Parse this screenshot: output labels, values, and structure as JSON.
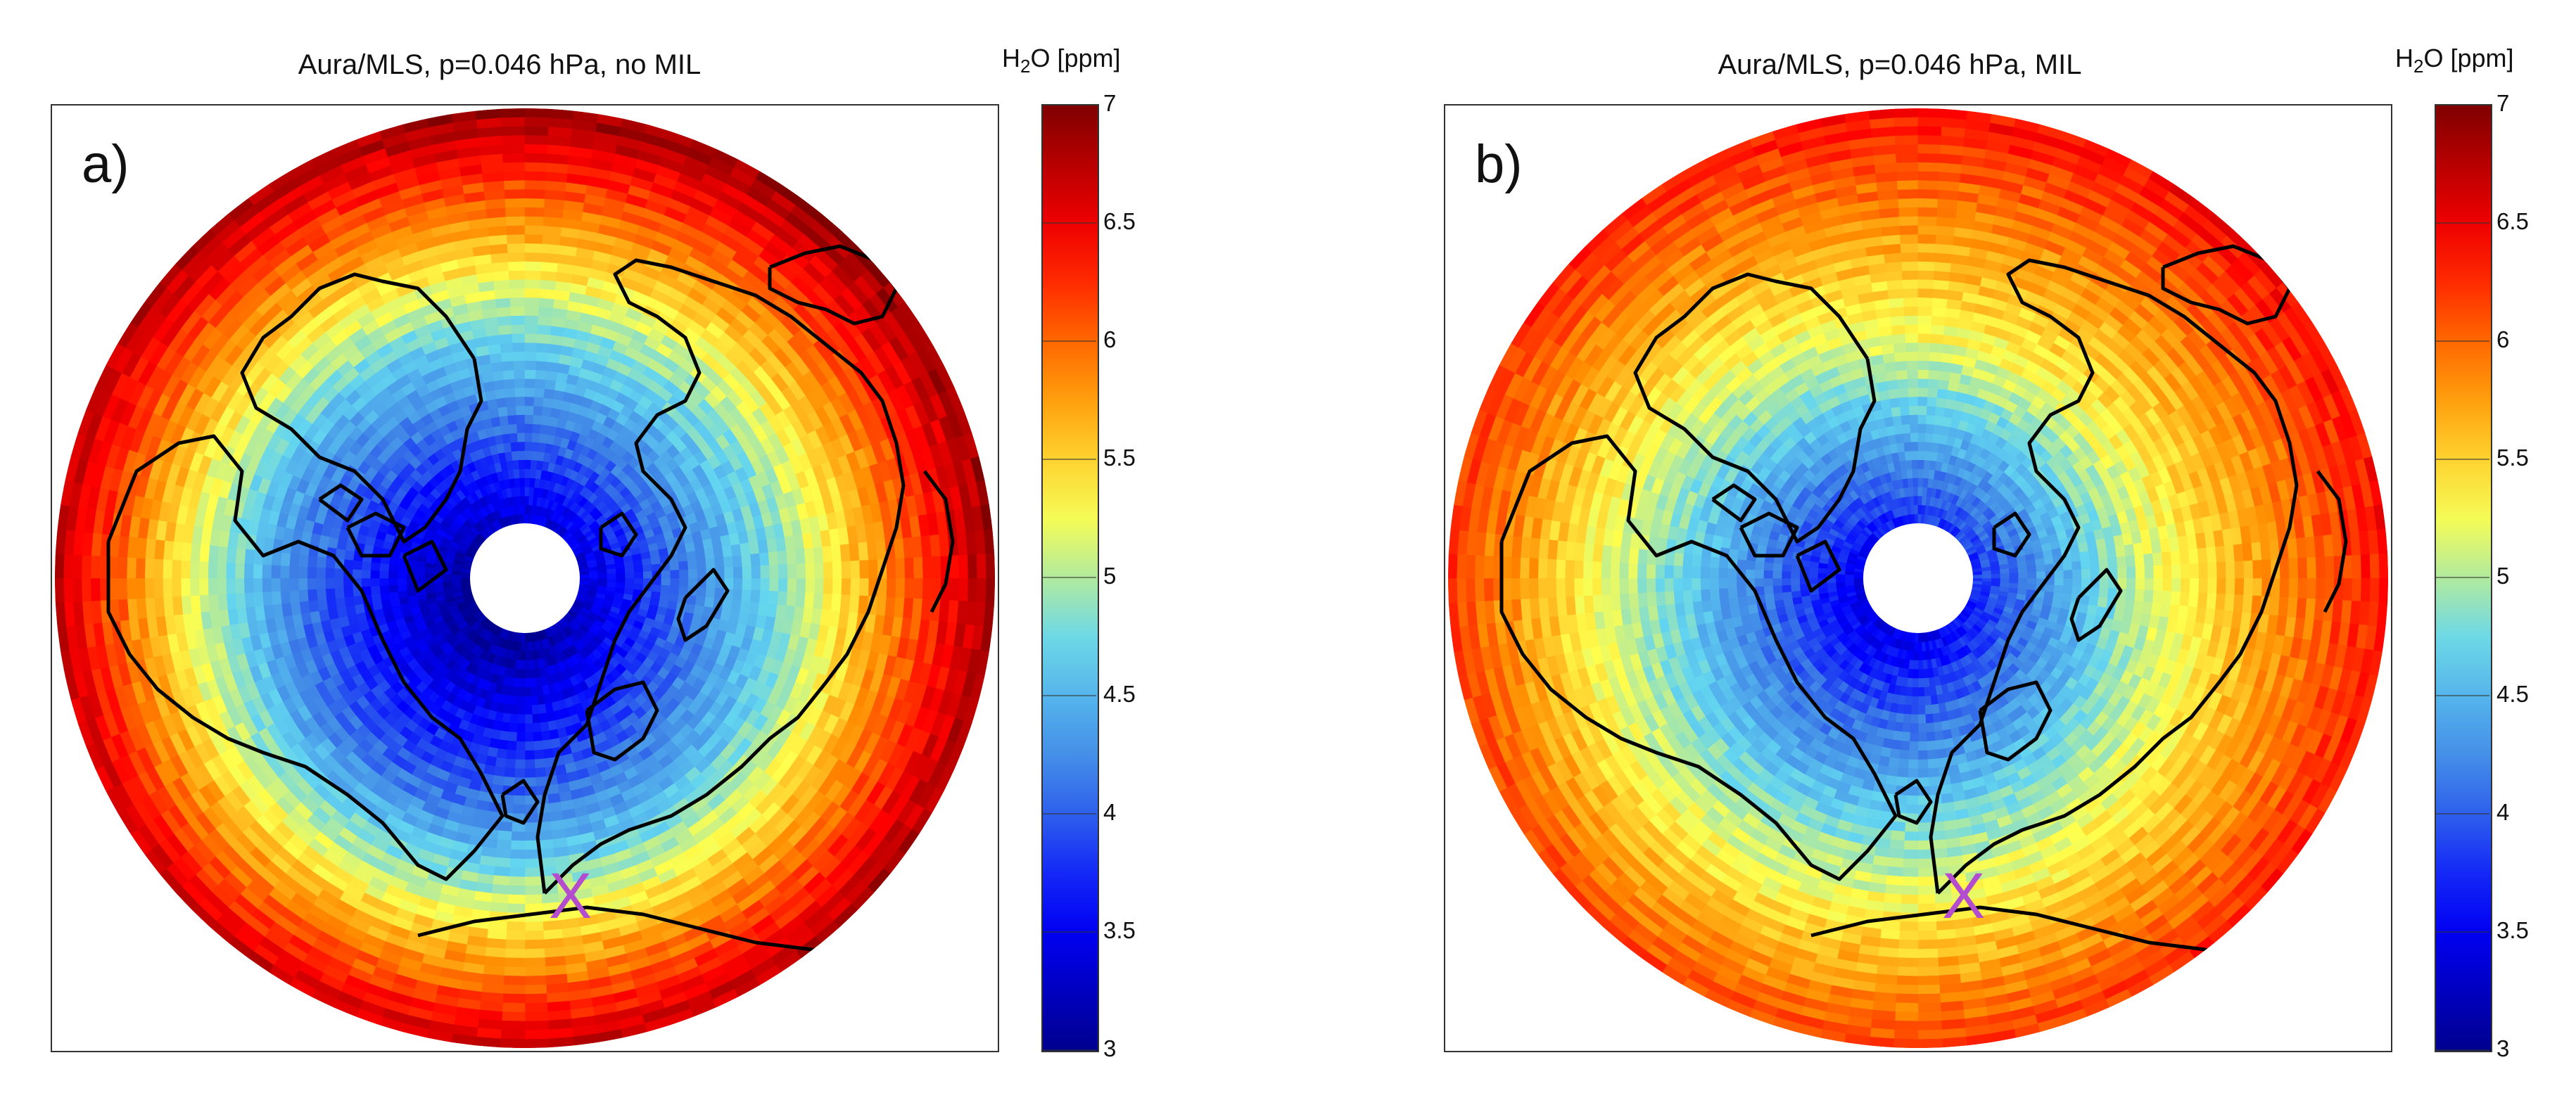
{
  "colormap": [
    "#00008f",
    "#0000ff",
    "#3d7fe6",
    "#63d5f0",
    "#ffff4d",
    "#ff8a00",
    "#ff0000",
    "#800000"
  ],
  "coastline_color": "#000000",
  "pole_hole_color": "#ffffff",
  "marker_color": "#b44ccf",
  "colorbar": {
    "title_base": "H",
    "title_sub": "2",
    "title_rest": "O [ppm]",
    "min": 3,
    "max": 7,
    "ticks": [
      "3",
      "3.5",
      "4",
      "4.5",
      "5",
      "5.5",
      "6",
      "6.5",
      "7"
    ]
  },
  "panels": [
    {
      "id": "a",
      "label": "a)",
      "title": "Aura/MLS, p=0.046 hPa, no MIL",
      "marker": "X",
      "h2o_pole_ppm": 3.2,
      "h2o_mid_ppm": 4.5,
      "h2o_edge_ppm": 6.8
    },
    {
      "id": "b",
      "label": "b)",
      "title": "Aura/MLS, p=0.046 hPa, MIL",
      "marker": "X",
      "h2o_pole_ppm": 3.6,
      "h2o_mid_ppm": 5.0,
      "h2o_edge_ppm": 6.3
    }
  ]
}
